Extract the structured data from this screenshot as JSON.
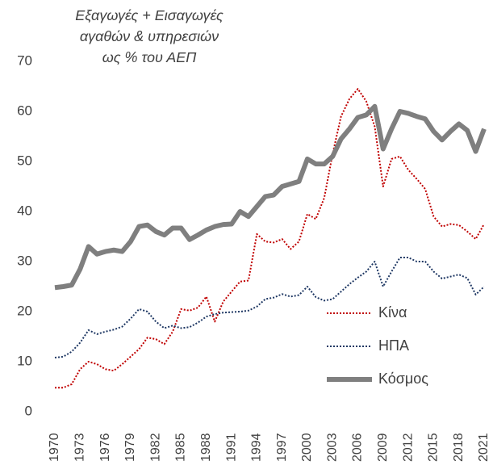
{
  "chart_data": {
    "type": "line",
    "title": [
      "Εξαγωγές + Εισαγωγές",
      "αγαθών & υπηρεσιών",
      "ως % του ΑΕΠ"
    ],
    "x": [
      1970,
      1971,
      1972,
      1973,
      1974,
      1975,
      1976,
      1977,
      1978,
      1979,
      1980,
      1981,
      1982,
      1983,
      1984,
      1985,
      1986,
      1987,
      1988,
      1989,
      1990,
      1991,
      1992,
      1993,
      1994,
      1995,
      1996,
      1997,
      1998,
      1999,
      2000,
      2001,
      2002,
      2003,
      2004,
      2005,
      2006,
      2007,
      2008,
      2009,
      2010,
      2011,
      2012,
      2013,
      2014,
      2015,
      2016,
      2017,
      2018,
      2019,
      2020,
      2021
    ],
    "series": [
      {
        "name": "Κίνα",
        "color": "#c00000",
        "style": "dotted",
        "values": [
          4.8,
          4.8,
          5.5,
          8.5,
          10,
          9.5,
          8.5,
          8.2,
          9.5,
          11,
          12.5,
          14.8,
          14.5,
          13.5,
          16,
          20.5,
          20.2,
          20.8,
          23,
          18,
          22,
          24,
          26,
          26.2,
          35.5,
          34,
          33.8,
          34.5,
          32.5,
          34,
          39.5,
          38.5,
          42.7,
          51.5,
          59,
          62.5,
          64.5,
          62,
          57,
          45,
          50.5,
          51,
          48.3,
          46.5,
          44.5,
          39,
          37,
          37.5,
          37.3,
          36,
          34.5,
          37.5
        ]
      },
      {
        "name": "ΗΠΑ",
        "color": "#1f3864",
        "style": "dotted",
        "values": [
          10.8,
          11,
          12,
          13.8,
          16.3,
          15.5,
          16,
          16.4,
          17,
          18.6,
          20.5,
          20,
          18,
          16.7,
          17.2,
          16.7,
          16.9,
          17.8,
          19,
          19.5,
          19.8,
          19.9,
          20,
          20.2,
          21,
          22.5,
          22.8,
          23.5,
          23,
          23.3,
          25,
          22.9,
          22.2,
          22.5,
          24,
          25.5,
          26.8,
          28,
          30,
          25,
          28,
          30.8,
          30.8,
          30,
          30,
          28,
          26.6,
          27,
          27.4,
          26.7,
          23.4,
          25
        ]
      },
      {
        "name": "Κόσμος",
        "color": "#7f7f7f",
        "style": "solid",
        "values": [
          24.8,
          25,
          25.3,
          28.5,
          33,
          31.5,
          32,
          32.3,
          32,
          34,
          37,
          37.3,
          36,
          35.3,
          36.7,
          36.7,
          34.4,
          35.3,
          36.3,
          37,
          37.4,
          37.5,
          40,
          39,
          41,
          43,
          43.3,
          45,
          45.5,
          46,
          50.5,
          49.5,
          49.5,
          51,
          54.5,
          56.5,
          58.8,
          59.3,
          61,
          52.5,
          56.5,
          60,
          59.6,
          59,
          58.5,
          56,
          54.3,
          56,
          57.5,
          56.2,
          52,
          56.5
        ]
      }
    ],
    "xlim": [
      1970,
      2021
    ],
    "xticks": [
      1970,
      1973,
      1976,
      1979,
      1982,
      1985,
      1988,
      1991,
      1994,
      1997,
      2000,
      2003,
      2006,
      2009,
      2012,
      2015,
      2018,
      2021
    ],
    "ylim": [
      0,
      70
    ],
    "yticks": [
      0,
      10,
      20,
      30,
      40,
      50,
      60,
      70
    ],
    "grid": false,
    "legend": "lower right"
  }
}
